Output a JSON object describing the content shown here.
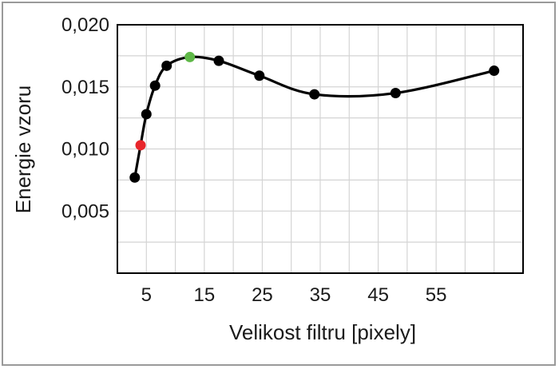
{
  "chart_data": {
    "type": "line",
    "title": "",
    "xlabel": "Velikost filtru [pixely]",
    "ylabel": "Energie vzoru",
    "xlim": [
      0,
      70
    ],
    "ylim": [
      0,
      0.02
    ],
    "x_ticks": [
      5,
      15,
      25,
      35,
      45,
      55
    ],
    "x_tick_labels": [
      "5",
      "15",
      "25",
      "35",
      "45",
      "55"
    ],
    "y_ticks": [
      0.005,
      0.01,
      0.015,
      0.02
    ],
    "y_tick_labels": [
      "0,005",
      "0,010",
      "0,015",
      "0,020"
    ],
    "grid": true,
    "legend": "none",
    "series": [
      {
        "x": [
          3,
          4,
          5,
          6.5,
          8.5,
          12.5,
          17.5,
          24.5,
          34,
          48,
          65
        ],
        "y": [
          0.0077,
          0.0103,
          0.0128,
          0.0151,
          0.0167,
          0.0174,
          0.0171,
          0.0159,
          0.0144,
          0.0145,
          0.0163
        ],
        "point_colors": [
          "#000000",
          "#e8262b",
          "#000000",
          "#000000",
          "#000000",
          "#5fb848",
          "#000000",
          "#000000",
          "#000000",
          "#000000",
          "#000000"
        ]
      }
    ],
    "colors": {
      "line": "#000000",
      "highlight_red": "#e8262b",
      "highlight_green": "#5fb848",
      "grid": "#d4d4d4"
    }
  }
}
